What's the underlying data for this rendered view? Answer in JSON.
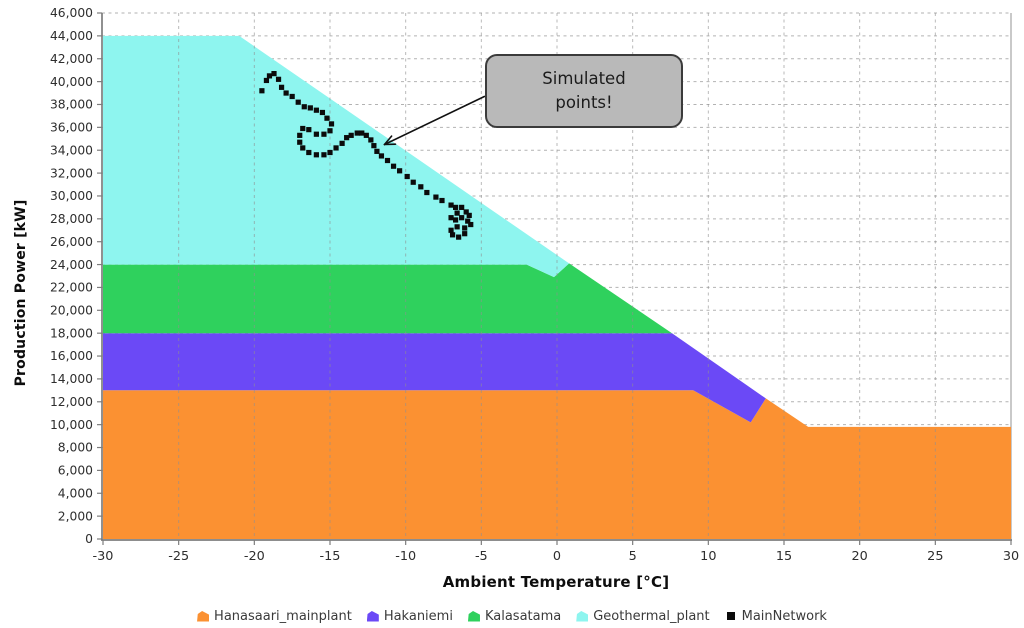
{
  "chart_data": {
    "type": "area",
    "stacked": true,
    "title": "",
    "xlabel": "Ambient Temperature [°C]",
    "ylabel": "Production Power [kW]",
    "xlim": [
      -30,
      30
    ],
    "ylim": [
      0,
      46000
    ],
    "grid": "dashed",
    "legend_position": "bottom",
    "x_tick_values": [
      -30,
      -25,
      -20,
      -15,
      -10,
      -5,
      0,
      5,
      10,
      15,
      20,
      25,
      30
    ],
    "x_tick_labels": [
      "-30",
      "-25",
      "-20",
      "-15",
      "-10",
      "-5",
      "0",
      "5",
      "10",
      "15",
      "20",
      "25",
      "30"
    ],
    "y_tick_values": [
      0,
      2000,
      4000,
      6000,
      8000,
      10000,
      12000,
      14000,
      16000,
      18000,
      20000,
      22000,
      24000,
      26000,
      28000,
      30000,
      32000,
      34000,
      36000,
      38000,
      40000,
      42000,
      44000,
      46000
    ],
    "y_tick_labels": [
      "0",
      "2,000",
      "4,000",
      "6,000",
      "8,000",
      "10,000",
      "12,000",
      "14,000",
      "16,000",
      "18,000",
      "20,000",
      "22,000",
      "24,000",
      "26,000",
      "28,000",
      "30,000",
      "32,000",
      "34,000",
      "36,000",
      "38,000",
      "40,000",
      "42,000",
      "44,000",
      "46,000"
    ],
    "series": [
      {
        "name": "Hanasaari_mainplant",
        "type": "area",
        "color": "#fb9132",
        "upper": [
          [
            -30,
            13000
          ],
          [
            9,
            13000
          ],
          [
            12.8,
            10200
          ],
          [
            13.8,
            12300
          ],
          [
            16.6,
            9800
          ],
          [
            30,
            9800
          ]
        ],
        "lower": [
          [
            -30,
            0
          ],
          [
            30,
            0
          ]
        ]
      },
      {
        "name": "Hakaniemi",
        "type": "area",
        "color": "#6b49f6",
        "upper": [
          [
            -30,
            18000
          ],
          [
            7.6,
            18000
          ],
          [
            13.8,
            12300
          ]
        ],
        "lower": [
          [
            -30,
            13000
          ],
          [
            9,
            13000
          ],
          [
            12.8,
            10200
          ],
          [
            13.8,
            12300
          ]
        ]
      },
      {
        "name": "Kalasatama",
        "type": "area",
        "color": "#2fd15d",
        "upper": [
          [
            -30,
            24000
          ],
          [
            -2,
            24000
          ],
          [
            -0.2,
            22900
          ],
          [
            0.8,
            24100
          ],
          [
            7.6,
            18000
          ]
        ],
        "lower": [
          [
            -30,
            18000
          ],
          [
            7.6,
            18000
          ]
        ]
      },
      {
        "name": "Geothermal_plant",
        "type": "area",
        "color": "#8ef5ef",
        "upper": [
          [
            -30,
            44000
          ],
          [
            -21,
            44000
          ],
          [
            0.8,
            24100
          ]
        ],
        "lower": [
          [
            -30,
            24000
          ],
          [
            -2,
            24000
          ],
          [
            -0.2,
            22900
          ],
          [
            0.8,
            24100
          ]
        ]
      },
      {
        "name": "MainNetwork",
        "type": "scatter",
        "color": "#0b0b0b",
        "marker": "square",
        "points": [
          [
            -19.5,
            39200
          ],
          [
            -19.2,
            40100
          ],
          [
            -19.0,
            40500
          ],
          [
            -18.7,
            40700
          ],
          [
            -18.4,
            40200
          ],
          [
            -18.2,
            39500
          ],
          [
            -17.9,
            39000
          ],
          [
            -17.5,
            38700
          ],
          [
            -17.1,
            38200
          ],
          [
            -16.7,
            37800
          ],
          [
            -16.3,
            37700
          ],
          [
            -15.9,
            37500
          ],
          [
            -15.5,
            37300
          ],
          [
            -15.2,
            36800
          ],
          [
            -14.9,
            36300
          ],
          [
            -15.0,
            35700
          ],
          [
            -15.4,
            35400
          ],
          [
            -15.9,
            35400
          ],
          [
            -16.4,
            35800
          ],
          [
            -16.8,
            35900
          ],
          [
            -17.0,
            35300
          ],
          [
            -17.0,
            34700
          ],
          [
            -16.8,
            34200
          ],
          [
            -16.4,
            33800
          ],
          [
            -15.9,
            33600
          ],
          [
            -15.4,
            33600
          ],
          [
            -15.0,
            33800
          ],
          [
            -14.6,
            34200
          ],
          [
            -14.2,
            34600
          ],
          [
            -13.9,
            35100
          ],
          [
            -13.6,
            35300
          ],
          [
            -13.2,
            35500
          ],
          [
            -12.9,
            35500
          ],
          [
            -12.6,
            35300
          ],
          [
            -12.3,
            34900
          ],
          [
            -12.1,
            34400
          ],
          [
            -11.9,
            33900
          ],
          [
            -11.6,
            33500
          ],
          [
            -11.2,
            33100
          ],
          [
            -10.8,
            32600
          ],
          [
            -10.4,
            32200
          ],
          [
            -9.9,
            31700
          ],
          [
            -9.5,
            31200
          ],
          [
            -9.0,
            30800
          ],
          [
            -8.6,
            30300
          ],
          [
            -8.0,
            29900
          ],
          [
            -7.6,
            29600
          ],
          [
            -7.0,
            29200
          ],
          [
            -6.7,
            29000
          ],
          [
            -6.3,
            29000
          ],
          [
            -6.0,
            28600
          ],
          [
            -5.8,
            28300
          ],
          [
            -6.6,
            28500
          ],
          [
            -7.0,
            28100
          ],
          [
            -6.7,
            27900
          ],
          [
            -6.3,
            28100
          ],
          [
            -5.9,
            27800
          ],
          [
            -5.7,
            27500
          ],
          [
            -6.1,
            27200
          ],
          [
            -6.6,
            27300
          ],
          [
            -7.0,
            27000
          ],
          [
            -6.9,
            26600
          ],
          [
            -6.5,
            26400
          ],
          [
            -6.1,
            26700
          ]
        ]
      }
    ],
    "annotation": {
      "text": "Simulated points!",
      "box_fill": "#b9b9b9",
      "box_border": "#3b3b3b",
      "arrow_from": [
        -4.8,
        38700
      ],
      "arrow_to": [
        -11.4,
        34500
      ]
    }
  },
  "legend": {
    "items": [
      {
        "label": "Hanasaari_mainplant",
        "color": "#fb9132",
        "marker": "area"
      },
      {
        "label": "Hakaniemi",
        "color": "#6b49f6",
        "marker": "area"
      },
      {
        "label": "Kalasatama",
        "color": "#2fd15d",
        "marker": "area"
      },
      {
        "label": "Geothermal_plant",
        "color": "#8ef5ef",
        "marker": "area"
      },
      {
        "label": "MainNetwork",
        "color": "#0b0b0b",
        "marker": "square"
      }
    ]
  },
  "colors": {
    "grid": "#b2b2b2",
    "axis": "#7d7d7d",
    "tick_text": "#2e2e2e",
    "scatter": "#0b0b0b"
  }
}
